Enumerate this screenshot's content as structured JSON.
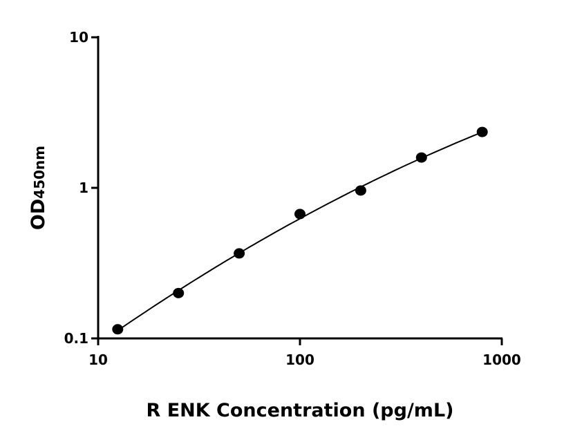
{
  "chart_data": {
    "type": "scatter",
    "xlabel": "R ENK Concentration (pg/mL)",
    "ylabel_main": "OD",
    "ylabel_sub": "450nm",
    "x_scale": "log",
    "y_scale": "log",
    "xlim": [
      10,
      1000
    ],
    "ylim": [
      0.1,
      10
    ],
    "x_ticks": [
      "10",
      "100",
      "1000"
    ],
    "y_ticks": [
      "0.1",
      "1",
      "10"
    ],
    "grid": false,
    "fit_curve": true,
    "x": [
      12.5,
      25,
      50,
      100,
      200,
      400,
      800
    ],
    "y": [
      0.115,
      0.2,
      0.367,
      0.67,
      0.96,
      1.59,
      2.35
    ],
    "color": "#000000"
  }
}
